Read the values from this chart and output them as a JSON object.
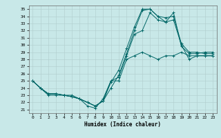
{
  "xlabel": "Humidex (Indice chaleur)",
  "bg_color": "#c8e8e8",
  "grid_color": "#b0cccc",
  "line_color": "#006666",
  "xlim": [
    -0.5,
    23.5
  ],
  "ylim": [
    20.5,
    35.5
  ],
  "yticks": [
    21,
    22,
    23,
    24,
    25,
    26,
    27,
    28,
    29,
    30,
    31,
    32,
    33,
    34,
    35
  ],
  "xticks": [
    0,
    1,
    2,
    3,
    4,
    5,
    6,
    7,
    8,
    9,
    10,
    11,
    12,
    13,
    14,
    15,
    16,
    17,
    18,
    19,
    20,
    21,
    22,
    23
  ],
  "series": [
    {
      "x": [
        0,
        1,
        2,
        3,
        4,
        5,
        6,
        7,
        8,
        9,
        10,
        11,
        12,
        13,
        14,
        15,
        16,
        17,
        18,
        19,
        20,
        21,
        22,
        23
      ],
      "y": [
        25,
        24,
        23,
        23,
        23,
        23,
        22.5,
        21.5,
        21.2,
        22.5,
        25,
        25,
        28,
        28.5,
        29,
        28.5,
        28,
        28.5,
        28.5,
        29,
        28.5,
        28.5,
        28.5,
        28.5
      ]
    },
    {
      "x": [
        0,
        1,
        2,
        3,
        4,
        5,
        6,
        7,
        8,
        9,
        10,
        11,
        12,
        13,
        14,
        15,
        16,
        17,
        18,
        19,
        20,
        21,
        22,
        23
      ],
      "y": [
        25,
        24,
        23.2,
        23.2,
        23,
        22.8,
        22.5,
        22,
        21.5,
        22.2,
        25,
        25.5,
        28.5,
        31.5,
        32,
        34.5,
        33.5,
        33.2,
        33.5,
        30,
        28,
        28.5,
        28.5,
        28.5
      ]
    },
    {
      "x": [
        0,
        1,
        2,
        3,
        4,
        5,
        6,
        7,
        8,
        9,
        10,
        11,
        12,
        13,
        14,
        15,
        16,
        17,
        18,
        19,
        20,
        21,
        22,
        23
      ],
      "y": [
        25,
        24,
        23.2,
        23.2,
        23,
        22.8,
        22.5,
        22,
        21.5,
        22.2,
        24,
        25.8,
        28.8,
        32,
        34.8,
        35,
        34,
        33.2,
        34.5,
        29.8,
        28.8,
        28.8,
        29,
        29
      ]
    },
    {
      "x": [
        0,
        1,
        2,
        3,
        4,
        5,
        6,
        7,
        8,
        9,
        10,
        11,
        12,
        13,
        14,
        15,
        16,
        17,
        18,
        19,
        20,
        21,
        22,
        23
      ],
      "y": [
        25,
        24,
        23.2,
        23.2,
        23,
        22.8,
        22.5,
        22,
        21.5,
        22.2,
        24.8,
        26.5,
        29.5,
        32.5,
        35,
        35,
        34,
        33.8,
        34,
        30.2,
        29,
        29,
        28.8,
        28.8
      ]
    }
  ]
}
